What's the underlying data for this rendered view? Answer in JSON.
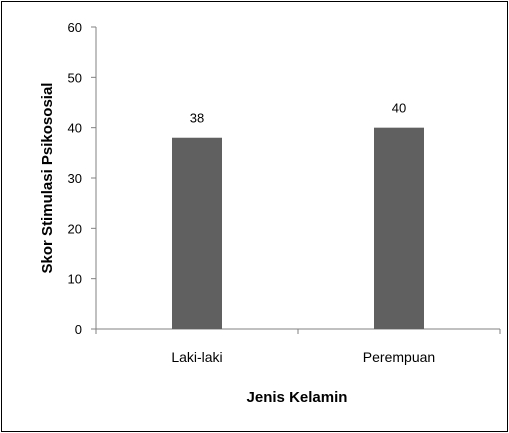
{
  "chart_data": {
    "type": "bar",
    "categories": [
      "Laki-laki",
      "Perempuan"
    ],
    "values": [
      38,
      40
    ],
    "data_labels": [
      "38",
      "40"
    ],
    "xlabel": "Jenis Kelamin",
    "ylabel": "Skor Stimulasi Psikososial",
    "ylim": [
      0,
      60
    ],
    "yticks": [
      0,
      10,
      20,
      30,
      40,
      50,
      60
    ],
    "grid": false,
    "legend": "none",
    "bar_color": "#606060"
  }
}
